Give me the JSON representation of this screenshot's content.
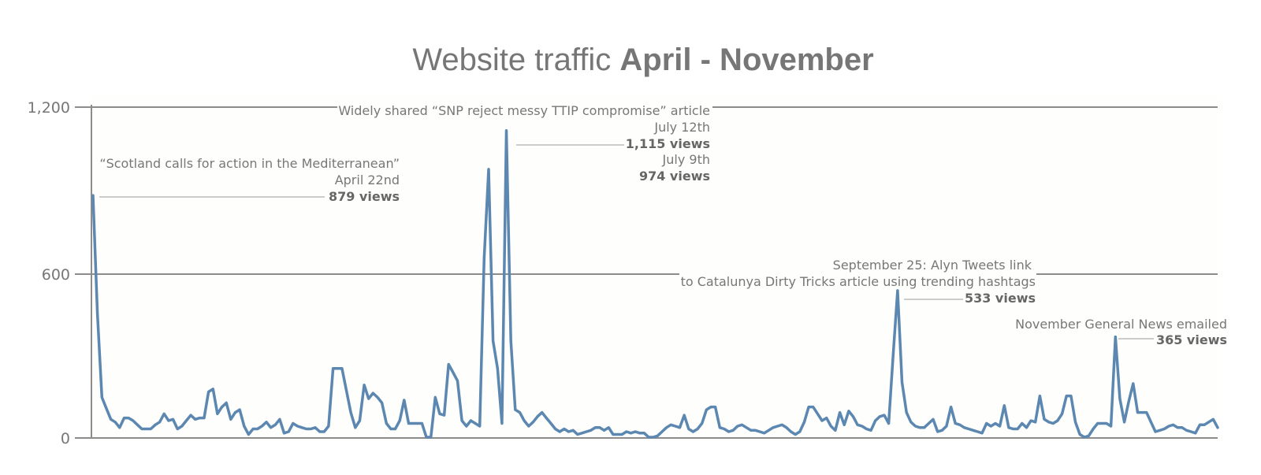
{
  "colors": {
    "series": "#5b87b0",
    "text": "#767676",
    "plot_bg": "#fefefc"
  },
  "chart_data": {
    "type": "line",
    "title_prefix": "Website traffic ",
    "title_emphasis": "April - November",
    "xlabel": "",
    "ylabel": "",
    "ylim": [
      0,
      1200
    ],
    "yticks": [
      0,
      600,
      1200
    ],
    "ytick_labels": [
      "0",
      "600",
      "1,200"
    ],
    "grid": true,
    "series": [
      {
        "values": [
          879,
          450,
          145,
          105,
          65,
          55,
          35,
          70,
          70,
          60,
          45,
          30,
          30,
          30,
          45,
          55,
          85,
          60,
          65,
          30,
          40,
          60,
          80,
          65,
          70,
          70,
          165,
          175,
          85,
          110,
          125,
          65,
          90,
          100,
          40,
          10,
          30,
          30,
          40,
          55,
          35,
          45,
          65,
          15,
          20,
          50,
          40,
          35,
          30,
          30,
          35,
          20,
          20,
          40,
          250,
          250,
          250,
          170,
          90,
          35,
          60,
          190,
          140,
          160,
          145,
          125,
          50,
          30,
          30,
          60,
          135,
          50,
          50,
          50,
          50,
          0,
          0,
          145,
          85,
          80,
          265,
          235,
          205,
          60,
          40,
          60,
          50,
          40,
          650,
          974,
          350,
          250,
          50,
          1115,
          350,
          100,
          90,
          60,
          40,
          55,
          75,
          90,
          70,
          50,
          30,
          20,
          30,
          20,
          25,
          10,
          15,
          20,
          25,
          35,
          35,
          25,
          35,
          10,
          10,
          10,
          20,
          15,
          20,
          15,
          15,
          0,
          0,
          5,
          20,
          35,
          45,
          40,
          35,
          80,
          30,
          20,
          30,
          50,
          100,
          110,
          110,
          35,
          30,
          20,
          25,
          40,
          45,
          35,
          25,
          25,
          20,
          15,
          25,
          35,
          40,
          45,
          35,
          20,
          10,
          20,
          55,
          110,
          110,
          85,
          60,
          70,
          40,
          25,
          90,
          45,
          95,
          75,
          45,
          40,
          30,
          25,
          60,
          75,
          80,
          50,
          300,
          533,
          200,
          90,
          55,
          40,
          35,
          35,
          50,
          65,
          20,
          25,
          40,
          110,
          50,
          45,
          35,
          30,
          25,
          20,
          15,
          50,
          40,
          50,
          40,
          115,
          35,
          30,
          30,
          50,
          35,
          60,
          55,
          150,
          65,
          55,
          50,
          60,
          85,
          150,
          150,
          55,
          10,
          0,
          5,
          30,
          50,
          50,
          50,
          40,
          365,
          140,
          55,
          130,
          195,
          90,
          90,
          90,
          55,
          20,
          25,
          30,
          40,
          45,
          35,
          35,
          25,
          20,
          15,
          45,
          45,
          55,
          65,
          35
        ]
      }
    ],
    "annotations": [
      {
        "lines": [
          "“Scotland calls for action in the Mediterranean”",
          "April 22nd"
        ],
        "value_label": "879 views"
      },
      {
        "lines": [
          "Widely shared “SNP reject messy TTIP compromise” article",
          "July 12th"
        ],
        "value_label": "1,115 views"
      },
      {
        "lines": [
          "July 9th"
        ],
        "value_label": "974 views"
      },
      {
        "lines": [
          "September 25: Alyn Tweets link",
          "to Catalunya Dirty Tricks article using trending hashtags"
        ],
        "value_label": "533 views"
      },
      {
        "lines": [
          "November General News emailed"
        ],
        "value_label": "365 views"
      }
    ]
  }
}
